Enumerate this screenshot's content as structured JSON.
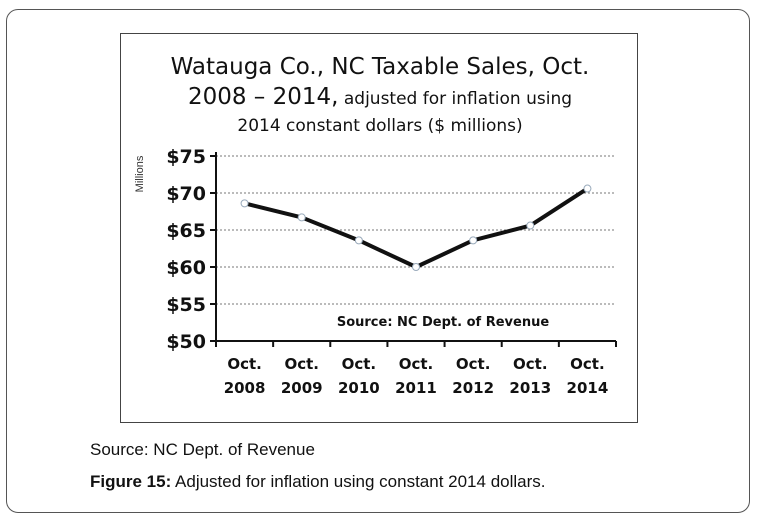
{
  "chart_data": {
    "type": "line",
    "title_line1": "Watauga Co., NC Taxable Sales, Oct.",
    "title_line2_main": "2008 – 2014,",
    "title_line2_sub": " adjusted for inflation using",
    "title_line3": "2014 constant dollars ($ millions)",
    "ylabel": "Millions",
    "categories": [
      "Oct.\n2008",
      "Oct.\n2009",
      "Oct.\n2010",
      "Oct.\n2011",
      "Oct.\n2012",
      "Oct.\n2013",
      "Oct.\n2014"
    ],
    "category_lines": [
      [
        "Oct.",
        "2008"
      ],
      [
        "Oct.",
        "2009"
      ],
      [
        "Oct.",
        "2010"
      ],
      [
        "Oct.",
        "2011"
      ],
      [
        "Oct.",
        "2012"
      ],
      [
        "Oct.",
        "2013"
      ],
      [
        "Oct.",
        "2014"
      ]
    ],
    "values": [
      68.6,
      66.7,
      63.6,
      60.0,
      63.6,
      65.6,
      70.6
    ],
    "ylim": [
      50,
      75
    ],
    "yticks": [
      50,
      55,
      60,
      65,
      70,
      75
    ],
    "ytick_labels": [
      "$50",
      "$55",
      "$60",
      "$65",
      "$70",
      "$75"
    ],
    "grid": true,
    "annotation": "Source: NC Dept. of Revenue",
    "line_color": "#111111"
  },
  "caption": {
    "source": "Source: NC Dept. of Revenue",
    "figure_label": "Figure 15:",
    "figure_text": " Adjusted for inflation using constant 2014 dollars."
  }
}
